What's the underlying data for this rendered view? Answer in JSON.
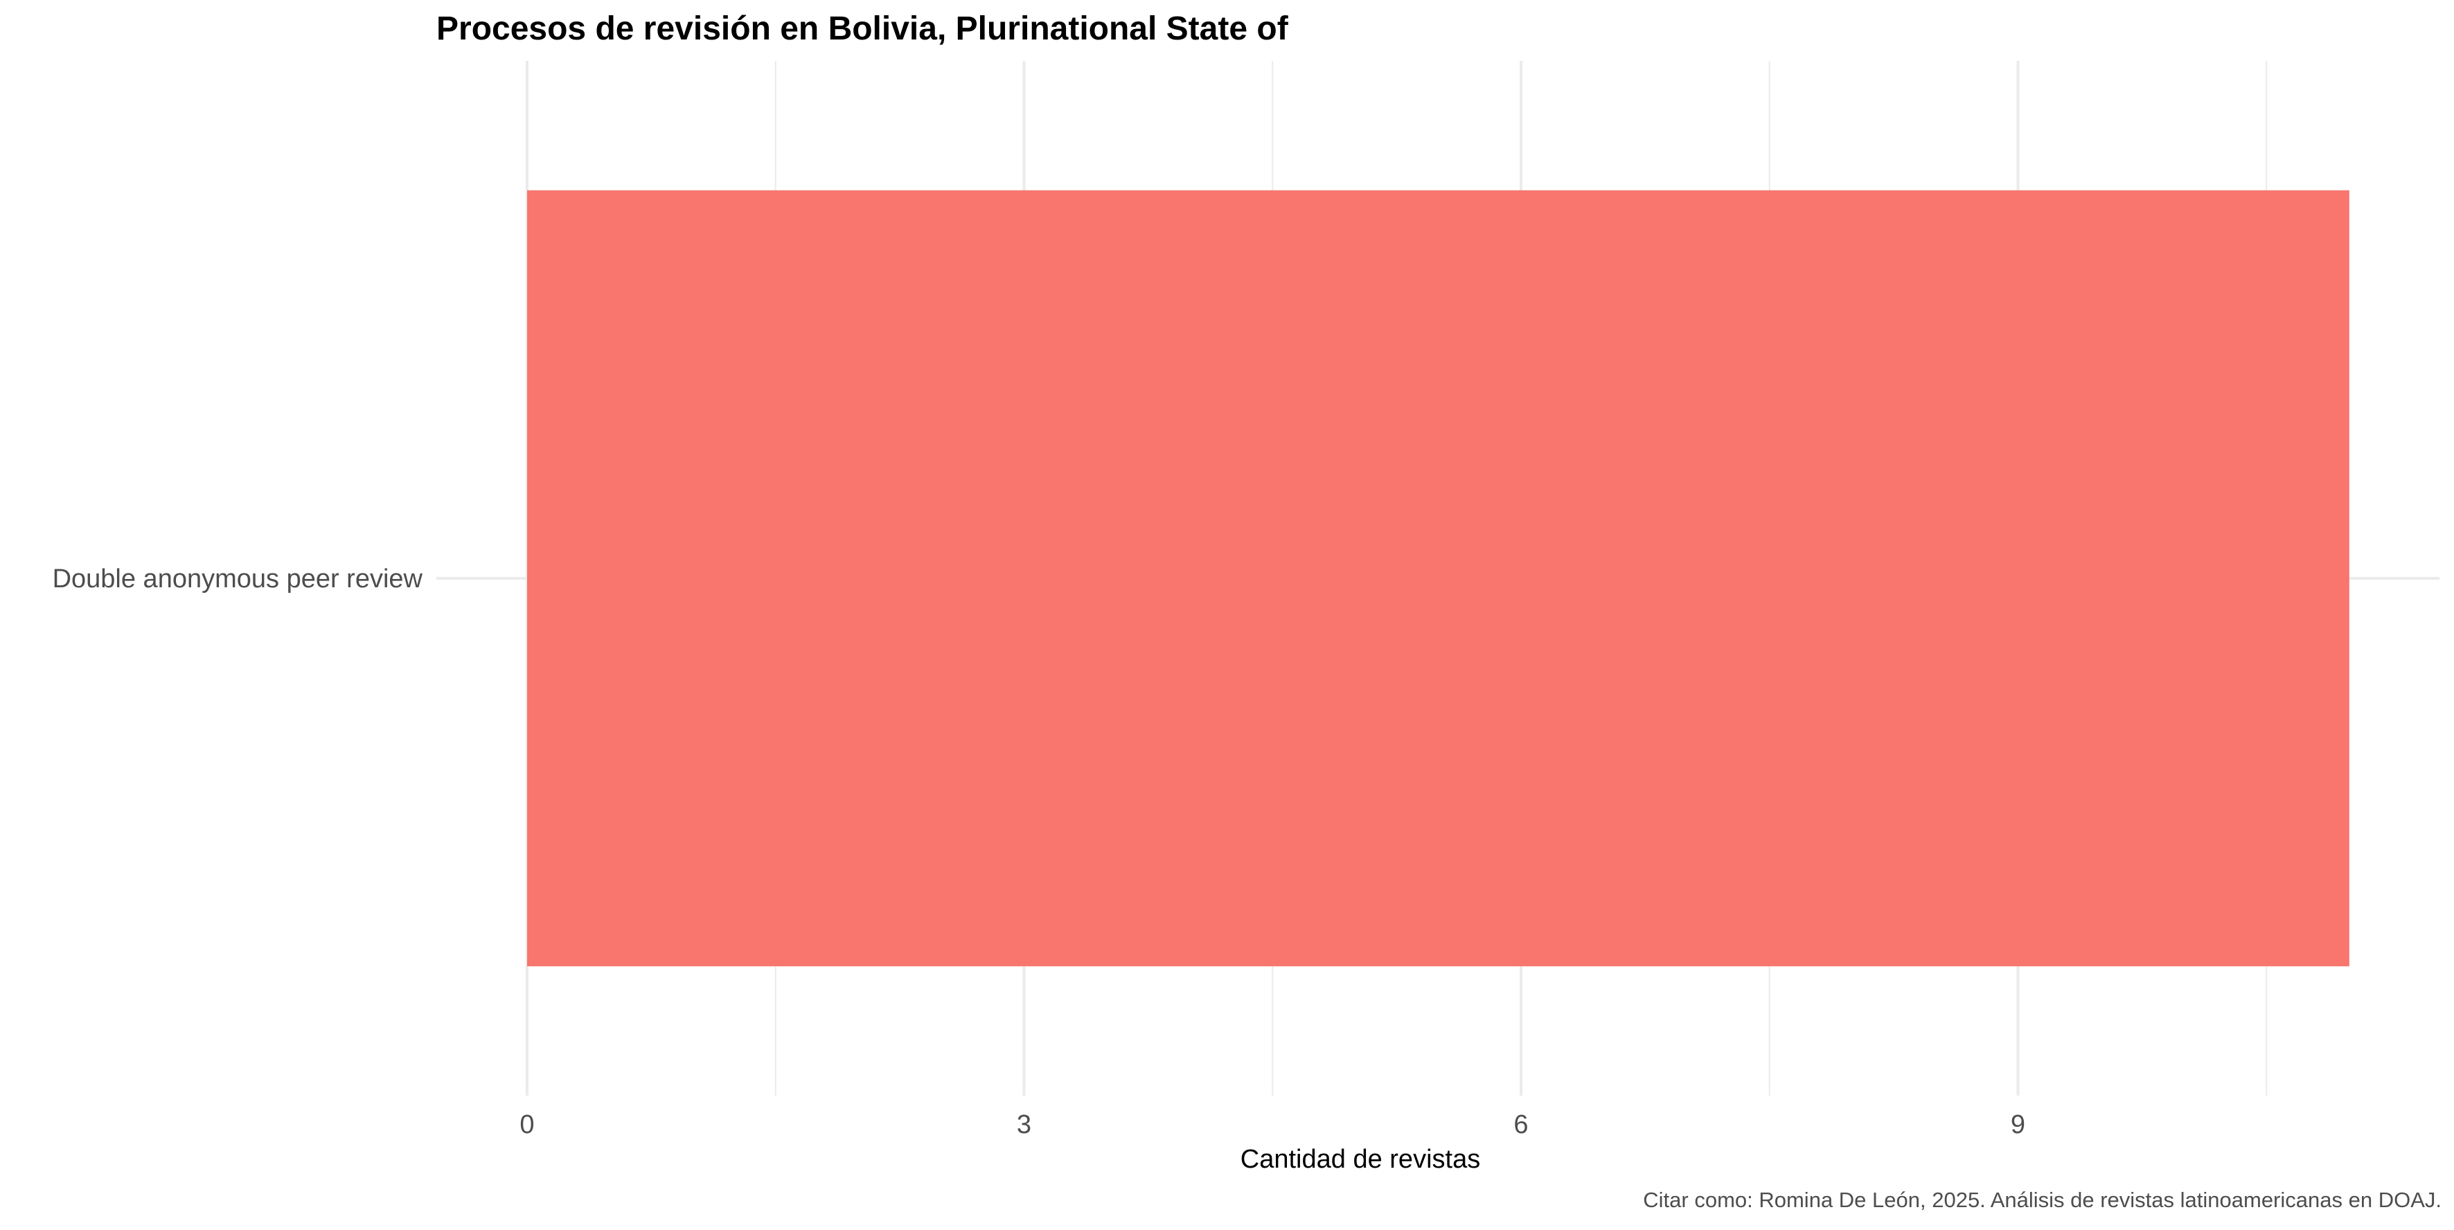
{
  "chart_data": {
    "type": "bar",
    "orientation": "horizontal",
    "title": "Procesos de revisión en Bolivia, Plurinational State of",
    "xlabel": "Cantidad de revistas",
    "ylabel": "",
    "categories": [
      "Double anonymous peer review"
    ],
    "values": [
      11
    ],
    "xlim": [
      0,
      11.5
    ],
    "x_ticks": [
      0,
      3,
      6,
      9
    ],
    "grid": true,
    "legend": "none",
    "bar_color": "#F8766D",
    "grid_color": "#EBEBEB",
    "caption": "Citar como: Romina De León, 2025. Análisis de revistas latinoamericanas en DOAJ."
  }
}
